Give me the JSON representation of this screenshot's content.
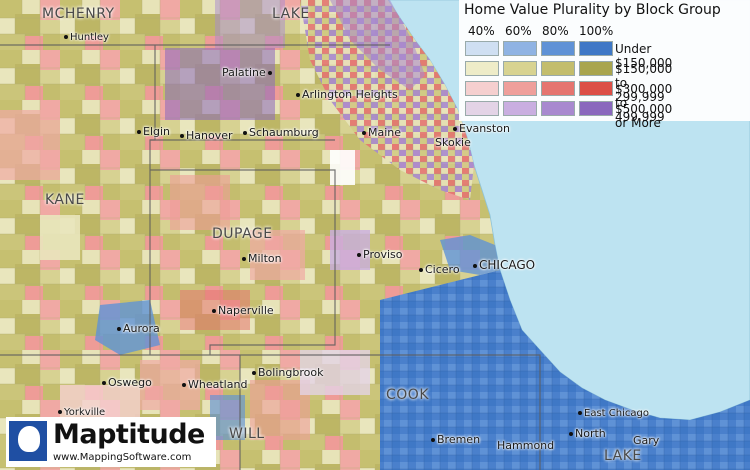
{
  "legend": {
    "title": "Home Value Plurality by Block Group",
    "percent_headers": [
      "40%",
      "60%",
      "80%",
      "100%"
    ],
    "categories": [
      {
        "label": "Under $150,000",
        "colors": [
          "#cfdff2",
          "#8fb3e3",
          "#5f92d6",
          "#3f78c6"
        ]
      },
      {
        "label": "$150,000 to 299,999",
        "colors": [
          "#eeecc8",
          "#d8d391",
          "#c3bd6c",
          "#a9a54e"
        ]
      },
      {
        "label": "$300,000 to 499,999",
        "colors": [
          "#f5cfcf",
          "#ef9f9b",
          "#e57570",
          "#dc4f47"
        ]
      },
      {
        "label": "$500,000 or More",
        "colors": [
          "#e3d3e6",
          "#c9aee0",
          "#a889cf",
          "#8a68bd"
        ]
      }
    ]
  },
  "counties": [
    "MCHENRY",
    "LAKE",
    "KANE",
    "DUPAGE",
    "COOK",
    "WILL",
    "LAKE"
  ],
  "cities": [
    "Huntley",
    "Palatine",
    "Arlington Heights",
    "Elgin",
    "Hanover",
    "Schaumburg",
    "Maine",
    "Evanston",
    "Skokie",
    "Milton",
    "Proviso",
    "Cicero",
    "CHICAGO",
    "Naperville",
    "Aurora",
    "Oswego",
    "Wheatland",
    "Bolingbrook",
    "Yorkville",
    "East Chicago",
    "Bremen",
    "North",
    "Hammond",
    "Gary"
  ],
  "lake_color": "#bde3f1",
  "logo": {
    "name": "Maptitude",
    "url": "www.MappingSoftware.com"
  }
}
